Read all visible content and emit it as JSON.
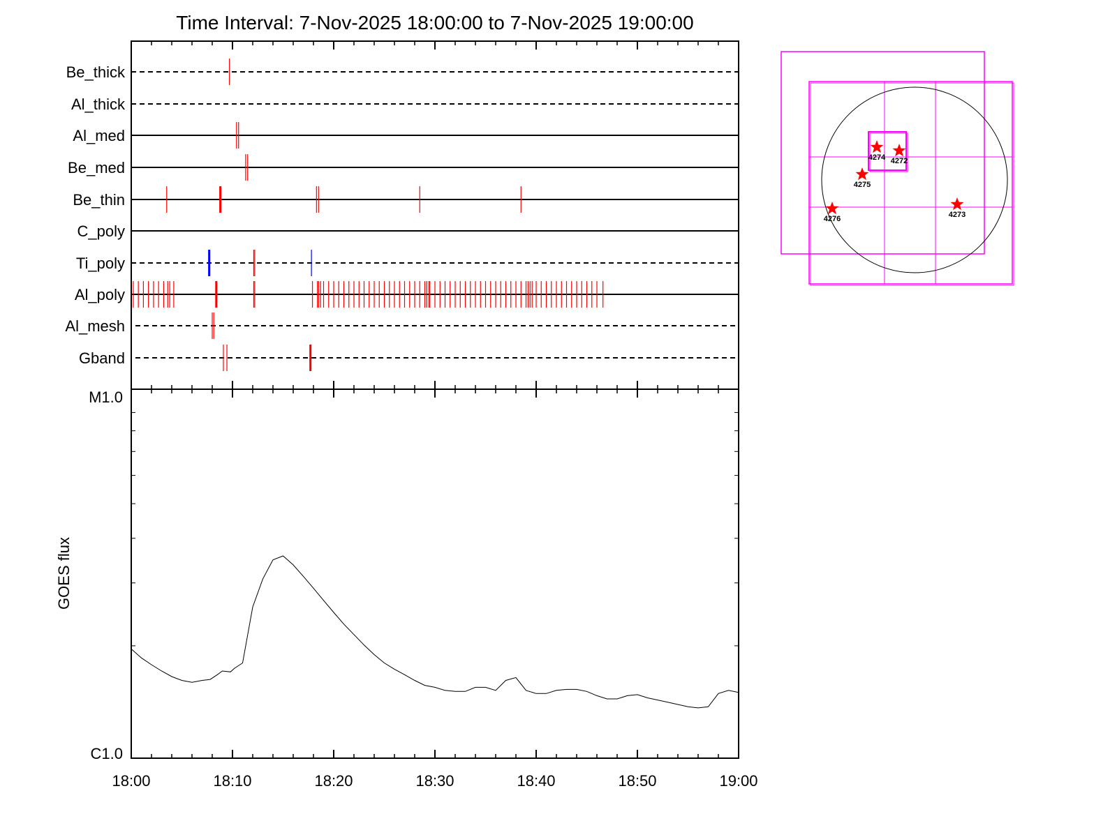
{
  "chart_data": [
    {
      "type": "event-timeline",
      "title": "Time Interval:  7-Nov-2025 18:00:00 to  7-Nov-2025 19:00:00",
      "x_unit": "minutes after 18:00",
      "xlim": [
        0,
        60
      ],
      "rows": [
        {
          "label": "Be_thick",
          "line": "dashed",
          "events": [
            {
              "t": 9.7,
              "color": "#ff0000"
            }
          ]
        },
        {
          "label": "Al_thick",
          "line": "dashed",
          "events": []
        },
        {
          "label": "Al_med",
          "line": "solid",
          "events": [
            {
              "t": 10.4,
              "color": "#ff0000"
            },
            {
              "t": 10.6,
              "color": "#ff0000"
            }
          ]
        },
        {
          "label": "Be_med",
          "line": "solid",
          "events": [
            {
              "t": 11.3,
              "color": "#ff0000"
            },
            {
              "t": 11.5,
              "color": "#ff0000"
            }
          ]
        },
        {
          "label": "Be_thin",
          "line": "solid",
          "events": [
            {
              "t": 3.5,
              "color": "#ff0000"
            },
            {
              "t": 8.8,
              "color": "#ff0000",
              "thick": true
            },
            {
              "t": 18.3,
              "color": "#ff0000"
            },
            {
              "t": 18.5,
              "color": "#ff0000"
            },
            {
              "t": 28.5,
              "color": "#ff0000"
            },
            {
              "t": 38.5,
              "color": "#ff0000"
            }
          ]
        },
        {
          "label": "C_poly",
          "line": "solid",
          "events": []
        },
        {
          "label": "Ti_poly",
          "line": "dashed",
          "events": [
            {
              "t": 7.7,
              "color": "#0000ff",
              "thick": true
            },
            {
              "t": 12.1,
              "color": "#ff0000"
            },
            {
              "t": 12.2,
              "color": "#ff0000"
            },
            {
              "t": 17.8,
              "color": "#0000ff"
            }
          ]
        },
        {
          "label": "Al_poly",
          "line": "solid",
          "events_red": [
            0.2,
            0.7,
            1.2,
            1.7,
            2.2,
            2.7,
            3.2,
            3.6,
            3.8,
            4.2,
            8.4,
            12.1,
            12.2,
            17.9,
            18.4,
            18.5,
            18.7,
            19.0,
            19.5,
            20.0,
            20.5,
            21.0,
            21.5,
            22.0,
            22.5,
            23.0,
            23.5,
            24.0,
            24.5,
            25.0,
            25.5,
            26.0,
            26.5,
            27.0,
            27.5,
            28.0,
            28.5,
            29.0,
            29.2,
            29.4,
            29.5,
            30.0,
            30.5,
            31.0,
            31.5,
            32.0,
            32.5,
            33.0,
            33.5,
            34.0,
            34.5,
            35.0,
            35.5,
            36.0,
            36.5,
            37.0,
            37.5,
            38.0,
            38.5,
            39.0,
            39.2,
            39.4,
            39.6,
            40.0,
            40.5,
            41.0,
            41.5,
            42.0,
            42.5,
            43.0,
            43.5,
            44.0,
            44.5,
            45.0,
            45.5,
            46.0,
            46.6
          ],
          "thick_at": [
            8.4
          ]
        },
        {
          "label": "Al_mesh",
          "line": "dashed",
          "events": [
            {
              "t": 8.0,
              "color": "#ff0000"
            },
            {
              "t": 8.15,
              "color": "#ff0000"
            }
          ]
        },
        {
          "label": "Gband",
          "line": "dashed",
          "events": [
            {
              "t": 9.1,
              "color": "#ff0000"
            },
            {
              "t": 9.45,
              "color": "#ff0000"
            },
            {
              "t": 17.7,
              "color": "#ff0000",
              "thick": true
            }
          ]
        }
      ]
    },
    {
      "type": "line",
      "ylabel": "GOES flux",
      "y_unit": "C-class multiplier (1 = C1.0, 10 = M1.0), log scale",
      "ylim": [
        1,
        10
      ],
      "ytick_labels": [
        "C1.0",
        "M1.0"
      ],
      "xtick_labels": [
        "18:00",
        "18:10",
        "18:20",
        "18:30",
        "18:40",
        "18:50",
        "19:00"
      ],
      "x": [
        0,
        1,
        2,
        3,
        4,
        5,
        6,
        7,
        7.8,
        8.5,
        9,
        9.8,
        10.2,
        11,
        12,
        13,
        14,
        15,
        16,
        17,
        18,
        19,
        20,
        21,
        22,
        23,
        24,
        25,
        26,
        27,
        28,
        29,
        30,
        31,
        32,
        33,
        34,
        35,
        36,
        37,
        38,
        39,
        40,
        41,
        42,
        43,
        44,
        45,
        46,
        47,
        48,
        49,
        50,
        51,
        52,
        53,
        54,
        55,
        56,
        57,
        58,
        59,
        60
      ],
      "y": [
        1.96,
        1.85,
        1.77,
        1.7,
        1.64,
        1.6,
        1.58,
        1.6,
        1.61,
        1.66,
        1.7,
        1.69,
        1.73,
        1.79,
        2.57,
        3.08,
        3.48,
        3.57,
        3.37,
        3.13,
        2.9,
        2.68,
        2.48,
        2.3,
        2.15,
        2.01,
        1.89,
        1.79,
        1.72,
        1.66,
        1.6,
        1.55,
        1.53,
        1.5,
        1.49,
        1.49,
        1.53,
        1.53,
        1.5,
        1.6,
        1.63,
        1.5,
        1.47,
        1.47,
        1.5,
        1.51,
        1.51,
        1.49,
        1.45,
        1.42,
        1.42,
        1.45,
        1.46,
        1.43,
        1.41,
        1.39,
        1.37,
        1.35,
        1.34,
        1.35,
        1.47,
        1.5,
        1.48
      ]
    },
    {
      "type": "solar-disk-map",
      "regions": [
        "4274",
        "4272",
        "4275",
        "4276",
        "4273"
      ],
      "colors": {
        "box": "#ff00ff",
        "star": "#ff0000",
        "limb": "#000000"
      }
    }
  ]
}
